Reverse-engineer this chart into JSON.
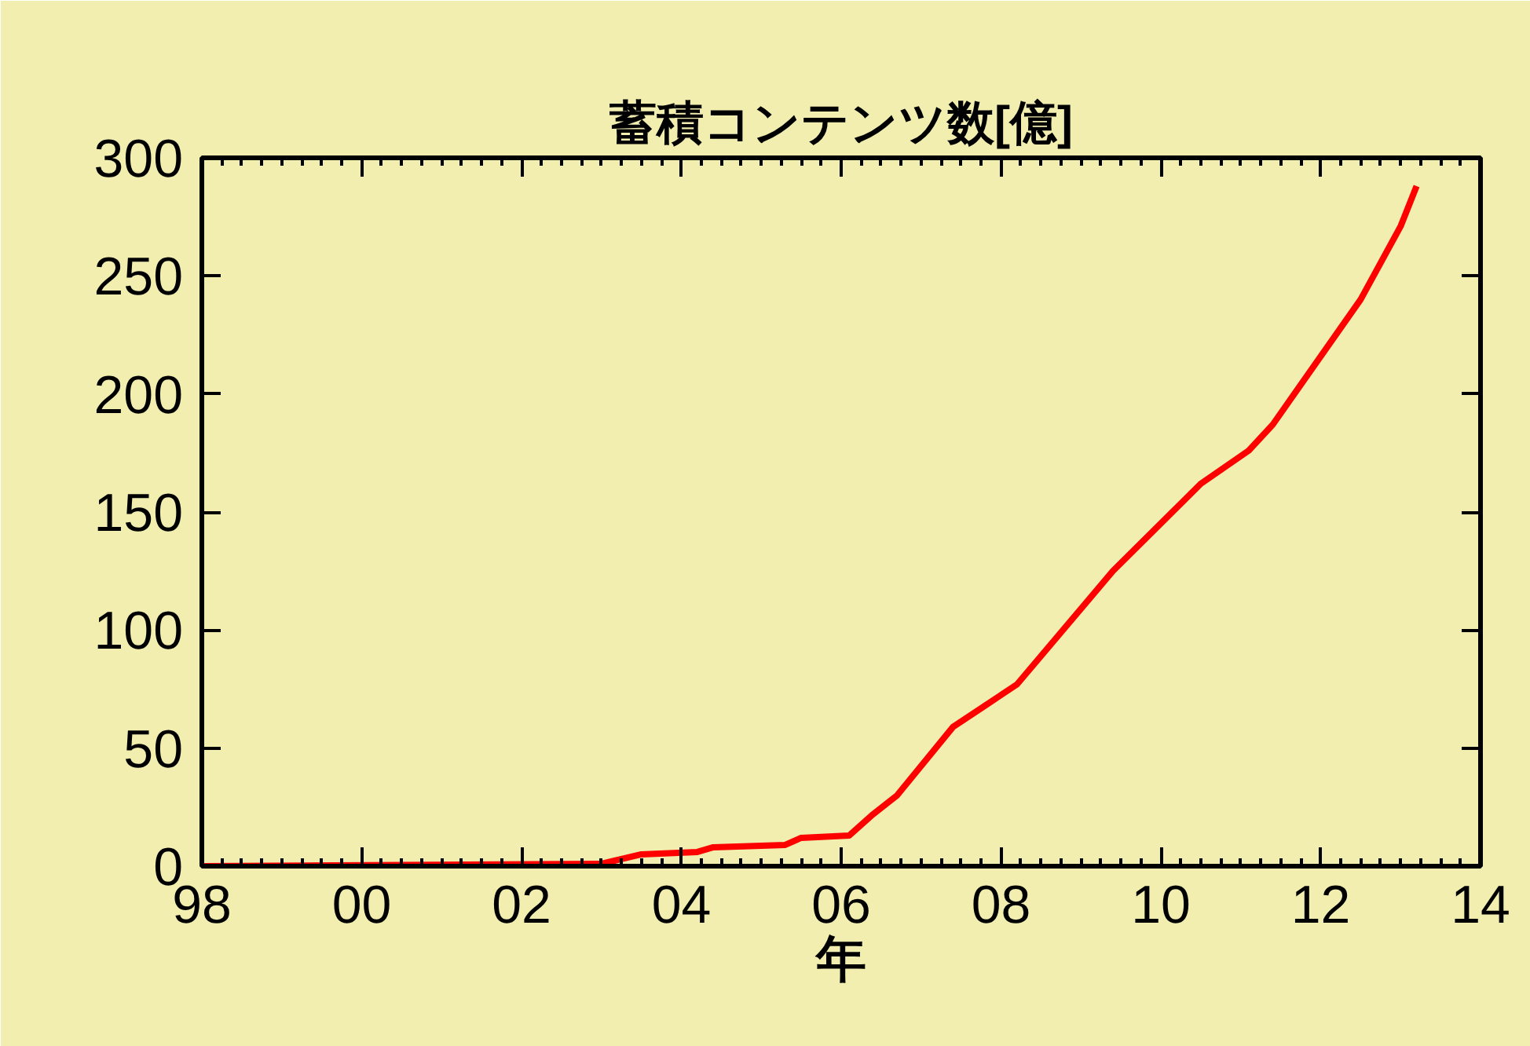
{
  "chart_data": {
    "type": "line",
    "title": "蓄積コンテンツ数[億]",
    "xlabel": "年",
    "x": [
      1998,
      2003.0,
      2003.5,
      2004.2,
      2004.4,
      2005.3,
      2005.5,
      2006.1,
      2006.4,
      2006.7,
      2007.4,
      2007.8,
      2008.2,
      2009.4,
      2010.5,
      2011.1,
      2011.4,
      2012.5,
      2013.0,
      2013.2
    ],
    "series": [
      {
        "color": "#ff0000",
        "values": [
          0,
          1,
          5,
          6,
          8,
          9,
          12,
          13,
          22,
          30,
          59,
          68,
          77,
          125,
          162,
          176,
          187,
          240,
          271,
          288
        ]
      }
    ],
    "xlim": [
      1998,
      2014
    ],
    "ylim": [
      0,
      300
    ],
    "xticks": [
      {
        "value": 1998,
        "label": "98"
      },
      {
        "value": 2000,
        "label": "00"
      },
      {
        "value": 2002,
        "label": "02"
      },
      {
        "value": 2004,
        "label": "04"
      },
      {
        "value": 2006,
        "label": "06"
      },
      {
        "value": 2008,
        "label": "08"
      },
      {
        "value": 2010,
        "label": "10"
      },
      {
        "value": 2012,
        "label": "12"
      },
      {
        "value": 2014,
        "label": "14"
      }
    ],
    "yticks": [
      0,
      50,
      100,
      150,
      200,
      250,
      300
    ],
    "grid": false,
    "marker": "none",
    "line_style": "solid"
  }
}
